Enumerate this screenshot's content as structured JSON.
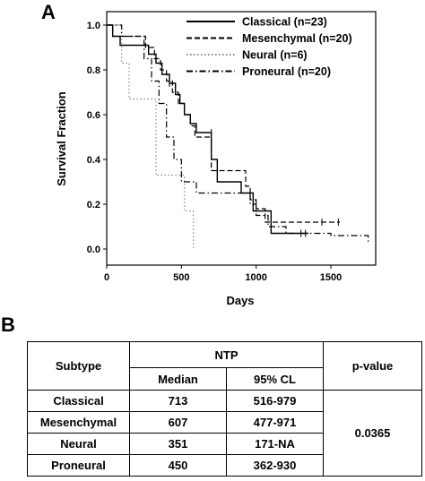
{
  "panels": {
    "a": "A",
    "b": "B"
  },
  "chart_data": {
    "type": "line",
    "style": "step (Kaplan-Meier survival curves)",
    "xlabel": "Days",
    "ylabel": "Survival Fraction",
    "xlim": [
      0,
      1800
    ],
    "ylim": [
      0,
      1.0
    ],
    "xticks": [
      "0",
      "500",
      "1000",
      "1500"
    ],
    "yticks": [
      "0.0",
      "0.2",
      "0.4",
      "0.6",
      "0.8",
      "1.0"
    ],
    "grid": false,
    "legend_position": "top-right",
    "series": [
      {
        "name": "Classical (n=23)",
        "dash": "solid",
        "color": "#000000",
        "x": [
          0,
          40,
          90,
          280,
          330,
          370,
          420,
          460,
          490,
          520,
          560,
          600,
          700,
          740,
          900,
          980,
          1100,
          1350
        ],
        "y": [
          1.0,
          0.95,
          0.91,
          0.87,
          0.83,
          0.78,
          0.74,
          0.69,
          0.65,
          0.6,
          0.56,
          0.52,
          0.4,
          0.3,
          0.25,
          0.17,
          0.07,
          0.07
        ],
        "censored": [
          [
            420,
            0.74
          ],
          [
            700,
            0.52
          ],
          [
            1300,
            0.07
          ]
        ]
      },
      {
        "name": "Mesenchymal (n=20)",
        "dash": "dashed",
        "color": "#000000",
        "x": [
          0,
          40,
          260,
          320,
          360,
          400,
          440,
          480,
          520,
          560,
          590,
          700,
          800,
          930,
          960,
          1000,
          1060,
          1300,
          1560
        ],
        "y": [
          1.0,
          0.95,
          0.9,
          0.85,
          0.8,
          0.75,
          0.7,
          0.65,
          0.6,
          0.55,
          0.5,
          0.35,
          0.35,
          0.28,
          0.22,
          0.18,
          0.12,
          0.12,
          0.12
        ],
        "censored": [
          [
            1440,
            0.12
          ],
          [
            1550,
            0.12
          ]
        ]
      },
      {
        "name": "Neural (n=6)",
        "dash": "dotted",
        "color": "#888888",
        "x": [
          0,
          100,
          150,
          200,
          330,
          450,
          520,
          580
        ],
        "y": [
          1.0,
          0.83,
          0.67,
          0.67,
          0.33,
          0.33,
          0.17,
          0.0
        ],
        "censored": []
      },
      {
        "name": "Proneural (n=20)",
        "dash": "dashdot",
        "color": "#000000",
        "x": [
          0,
          100,
          250,
          300,
          350,
          400,
          450,
          500,
          600,
          900,
          960,
          1000,
          1080,
          1200,
          1500,
          1750
        ],
        "y": [
          1.0,
          0.95,
          0.85,
          0.75,
          0.65,
          0.5,
          0.4,
          0.3,
          0.25,
          0.25,
          0.2,
          0.15,
          0.1,
          0.07,
          0.06,
          0.02
        ],
        "censored": [
          [
            1330,
            0.07
          ]
        ]
      }
    ]
  },
  "table": {
    "header": {
      "subtype": "Subtype",
      "ntp": "NTP",
      "median": "Median",
      "cl": "95% CL",
      "pvalue": "p-value"
    },
    "rows": [
      {
        "subtype": "Classical",
        "median": "713",
        "cl": "516-979"
      },
      {
        "subtype": "Mesenchymal",
        "median": "607",
        "cl": "477-971"
      },
      {
        "subtype": "Neural",
        "median": "351",
        "cl": "171-NA"
      },
      {
        "subtype": "Proneural",
        "median": "450",
        "cl": "362-930"
      }
    ],
    "pvalue": "0.0365"
  }
}
